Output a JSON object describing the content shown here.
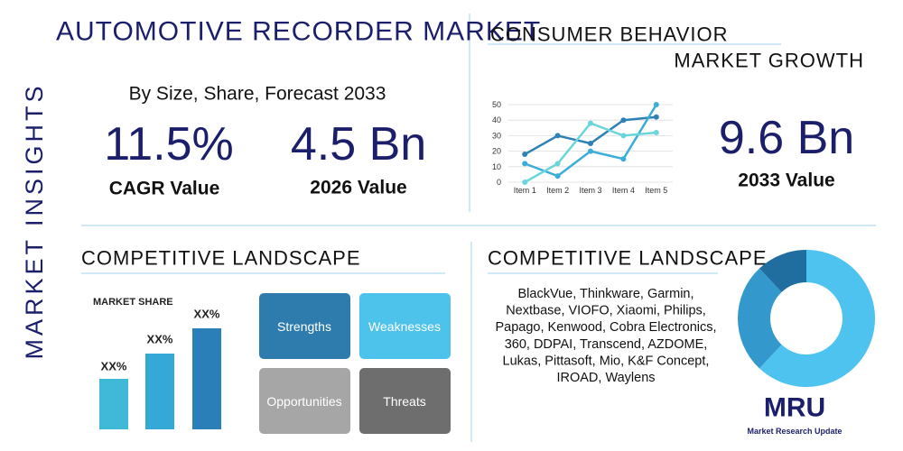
{
  "header": {
    "title": "AUTOMOTIVE RECORDER MARKET",
    "side_label": "MARKET INSIGHTS",
    "subtitle": "By Size, Share, Forecast 2033"
  },
  "stats": [
    {
      "value": "11.5%",
      "label": "CAGR Value"
    },
    {
      "value": "4.5 Bn",
      "label": "2026 Value"
    },
    {
      "value": "9.6 Bn",
      "label": "2033 Value"
    }
  ],
  "consumer": {
    "title": "CONSUMER BEHAVIOR",
    "subtitle": "MARKET GROWTH"
  },
  "chart_data": [
    {
      "type": "line",
      "categories": [
        "Item 1",
        "Item 2",
        "Item 3",
        "Item 4",
        "Item 5"
      ],
      "series": [
        {
          "color": "#2f80b4",
          "values": [
            18,
            30,
            25,
            40,
            42
          ]
        },
        {
          "color": "#3aaed8",
          "values": [
            12,
            4,
            20,
            15,
            50
          ]
        },
        {
          "color": "#6ad6dc",
          "values": [
            0,
            12,
            38,
            30,
            32
          ]
        }
      ],
      "ylim": [
        0,
        50
      ],
      "yticks": [
        0,
        10,
        20,
        30,
        40,
        50
      ]
    },
    {
      "type": "pie",
      "values": [
        62,
        26,
        12
      ],
      "colors": [
        "#4ec3f0",
        "#3399cc",
        "#1f6e9f"
      ]
    }
  ],
  "competitive": {
    "title": "COMPETITIVE LANDSCAPE",
    "market_share_label": "MARKET SHARE",
    "bar_labels": [
      "XX%",
      "XX%",
      "XX%"
    ],
    "swot": [
      "Strengths",
      "Weaknesses",
      "Opportunities",
      "Threats"
    ]
  },
  "players": {
    "title": "COMPETITIVE LANDSCAPE",
    "lines": [
      "BlackVue, Thinkware, Garmin,",
      "Nextbase, VIOFO, Xiaomi, Philips,",
      "Papago, Kenwood, Cobra Electronics,",
      "360, DDPAI, Transcend, AZDOME,",
      "Lukas, Pittasoft, Mio, K&F Concept,",
      "IROAD, Waylens"
    ]
  },
  "logo": {
    "text": "MRU",
    "caption": "Market Research Update"
  }
}
